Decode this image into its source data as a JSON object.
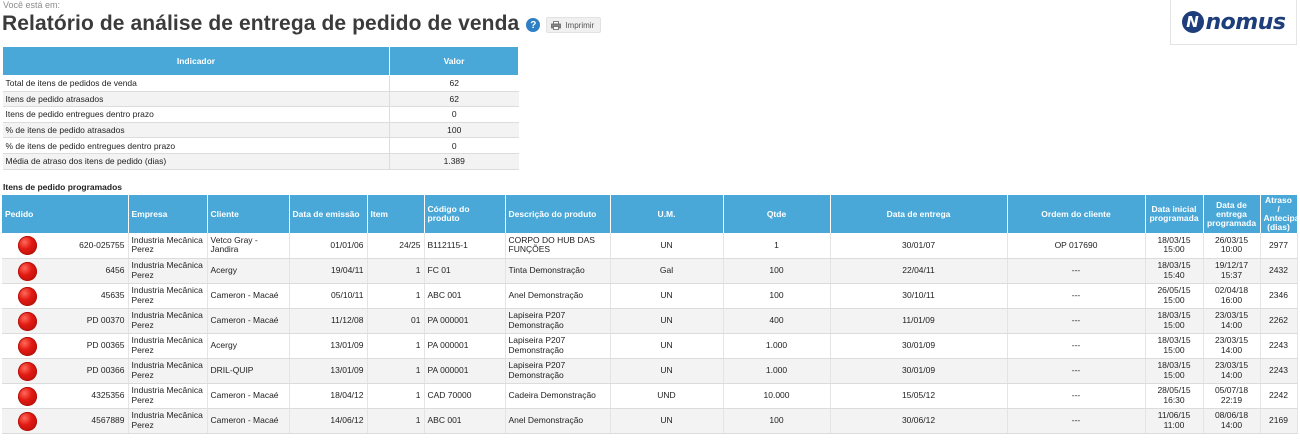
{
  "breadcrumb": "Você está em:",
  "page_title": "Relatório de análise de entrega de pedido de venda",
  "help_icon": "?",
  "print_label": "Imprimir",
  "logo": {
    "mark": "N",
    "text": "nomus",
    "color": "#1d3e7a"
  },
  "accent_color": "#4aa8d8",
  "status_color": "#e21a12",
  "summary": {
    "headers": {
      "indicator": "Indicador",
      "value": "Valor"
    },
    "rows": [
      {
        "label": "Total de itens de pedidos de venda",
        "value": "62"
      },
      {
        "label": "Itens de pedido atrasados",
        "value": "62"
      },
      {
        "label": "Itens de pedido entregues dentro prazo",
        "value": "0"
      },
      {
        "label": "% de itens de pedido atrasados",
        "value": "100"
      },
      {
        "label": "% de itens de pedido entregues dentro prazo",
        "value": "0"
      },
      {
        "label": "Média de atraso dos itens de pedido (dias)",
        "value": "1.389"
      }
    ]
  },
  "items_section_title": "Itens de pedido programados",
  "items": {
    "headers": {
      "pedido": "Pedido",
      "empresa": "Empresa",
      "cliente": "Cliente",
      "data_emissao": "Data de emissão",
      "item": "Item",
      "codigo": "Código do produto",
      "descricao": "Descrição do produto",
      "um": "U.M.",
      "qtde": "Qtde",
      "data_entrega": "Data de entrega",
      "ordem": "Ordem do cliente",
      "data_inicial": "Data inicial programada",
      "data_prog": "Data de entrega programada",
      "atraso": "Atraso / Antecipação (dias)"
    },
    "rows": [
      {
        "status": "atrasado",
        "pedido": "620-025755",
        "empresa": "Industria Mecânica Perez",
        "cliente": "Vetco Gray - Jandira",
        "data_emissao": "01/01/06",
        "item": "24/25",
        "codigo": "B112115-1",
        "descricao": "CORPO DO HUB DAS FUNÇÕES",
        "um": "UN",
        "qtde": "1",
        "data_entrega": "30/01/07",
        "ordem": "OP 017690",
        "data_inicial": "18/03/15 15:00",
        "data_prog": "26/03/15 10:00",
        "atraso": "2977"
      },
      {
        "status": "atrasado",
        "pedido": "6456",
        "empresa": "Industria Mecânica Perez",
        "cliente": "Acergy",
        "data_emissao": "19/04/11",
        "item": "1",
        "codigo": "FC 01",
        "descricao": "Tinta Demonstração",
        "um": "Gal",
        "qtde": "100",
        "data_entrega": "22/04/11",
        "ordem": "---",
        "data_inicial": "18/03/15 15:40",
        "data_prog": "19/12/17 15:37",
        "atraso": "2432"
      },
      {
        "status": "atrasado",
        "pedido": "45635",
        "empresa": "Industria Mecânica Perez",
        "cliente": "Cameron - Macaé",
        "data_emissao": "05/10/11",
        "item": "1",
        "codigo": "ABC 001",
        "descricao": "Anel Demonstração",
        "um": "UN",
        "qtde": "100",
        "data_entrega": "30/10/11",
        "ordem": "---",
        "data_inicial": "26/05/15 15:00",
        "data_prog": "02/04/18 16:00",
        "atraso": "2346"
      },
      {
        "status": "atrasado",
        "pedido": "PD 00370",
        "empresa": "Industria Mecânica Perez",
        "cliente": "Cameron - Macaé",
        "data_emissao": "11/12/08",
        "item": "01",
        "codigo": "PA 000001",
        "descricao": "Lapiseira P207 Demonstração",
        "um": "UN",
        "qtde": "400",
        "data_entrega": "11/01/09",
        "ordem": "---",
        "data_inicial": "18/03/15 15:00",
        "data_prog": "23/03/15 14:00",
        "atraso": "2262"
      },
      {
        "status": "atrasado",
        "pedido": "PD 00365",
        "empresa": "Industria Mecânica Perez",
        "cliente": "Acergy",
        "data_emissao": "13/01/09",
        "item": "1",
        "codigo": "PA 000001",
        "descricao": "Lapiseira P207 Demonstração",
        "um": "UN",
        "qtde": "1.000",
        "data_entrega": "30/01/09",
        "ordem": "---",
        "data_inicial": "18/03/15 15:00",
        "data_prog": "23/03/15 14:00",
        "atraso": "2243"
      },
      {
        "status": "atrasado",
        "pedido": "PD 00366",
        "empresa": "Industria Mecânica Perez",
        "cliente": "DRIL-QUIP",
        "data_emissao": "13/01/09",
        "item": "1",
        "codigo": "PA 000001",
        "descricao": "Lapiseira P207 Demonstração",
        "um": "UN",
        "qtde": "1.000",
        "data_entrega": "30/01/09",
        "ordem": "---",
        "data_inicial": "18/03/15 15:00",
        "data_prog": "23/03/15 14:00",
        "atraso": "2243"
      },
      {
        "status": "atrasado",
        "pedido": "4325356",
        "empresa": "Industria Mecânica Perez",
        "cliente": "Cameron - Macaé",
        "data_emissao": "18/04/12",
        "item": "1",
        "codigo": "CAD 70000",
        "descricao": "Cadeira Demonstração",
        "um": "UND",
        "qtde": "10.000",
        "data_entrega": "15/05/12",
        "ordem": "---",
        "data_inicial": "28/05/15 16:30",
        "data_prog": "05/07/18 22:19",
        "atraso": "2242"
      },
      {
        "status": "atrasado",
        "pedido": "4567889",
        "empresa": "Industria Mecânica Perez",
        "cliente": "Cameron - Macaé",
        "data_emissao": "14/06/12",
        "item": "1",
        "codigo": "ABC 001",
        "descricao": "Anel Demonstração",
        "um": "UN",
        "qtde": "100",
        "data_entrega": "30/06/12",
        "ordem": "---",
        "data_inicial": "11/06/15 11:00",
        "data_prog": "08/06/18 14:00",
        "atraso": "2169"
      }
    ]
  }
}
